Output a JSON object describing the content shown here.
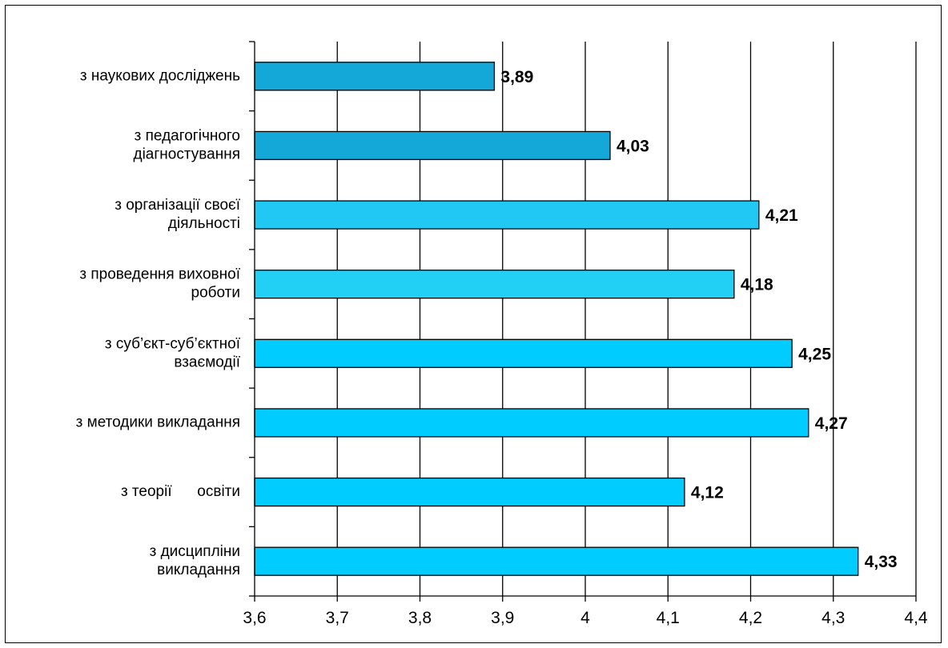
{
  "chart_data": {
    "type": "bar",
    "orientation": "horizontal",
    "title": "",
    "xlabel": "",
    "ylabel": "",
    "xlim": [
      3.6,
      4.4
    ],
    "x_ticks": [
      "3,6",
      "3,7",
      "3,8",
      "3,9",
      "4",
      "4,1",
      "4,2",
      "4,3",
      "4,4"
    ],
    "x_tick_values": [
      3.6,
      3.7,
      3.8,
      3.9,
      4.0,
      4.1,
      4.2,
      4.3,
      4.4
    ],
    "grid": "vertical",
    "categories": [
      {
        "lines": [
          "з наукових досліджень"
        ]
      },
      {
        "lines": [
          "з педагогічного",
          "діагностування"
        ]
      },
      {
        "lines": [
          "з організації своєї",
          "діяльності"
        ]
      },
      {
        "lines": [
          "з проведення виховної",
          "роботи"
        ]
      },
      {
        "lines": [
          "з суб’єкт-суб’єктної",
          "взаємодії"
        ]
      },
      {
        "lines": [
          "з методики викладання"
        ]
      },
      {
        "lines": [
          "з теорії      освіти"
        ]
      },
      {
        "lines": [
          "з дисципліни",
          "викладання"
        ]
      }
    ],
    "values": [
      3.89,
      4.03,
      4.21,
      4.18,
      4.25,
      4.27,
      4.12,
      4.33
    ],
    "value_labels": [
      "3,89",
      "4,03",
      "4,21",
      "4,18",
      "4,25",
      "4,27",
      "4,12",
      "4,33"
    ],
    "bar_colors": [
      "#14a8d8",
      "#14a8d8",
      "#22c8f4",
      "#22d0f6",
      "#00ccff",
      "#00ccff",
      "#00ccff",
      "#00ccff"
    ]
  }
}
